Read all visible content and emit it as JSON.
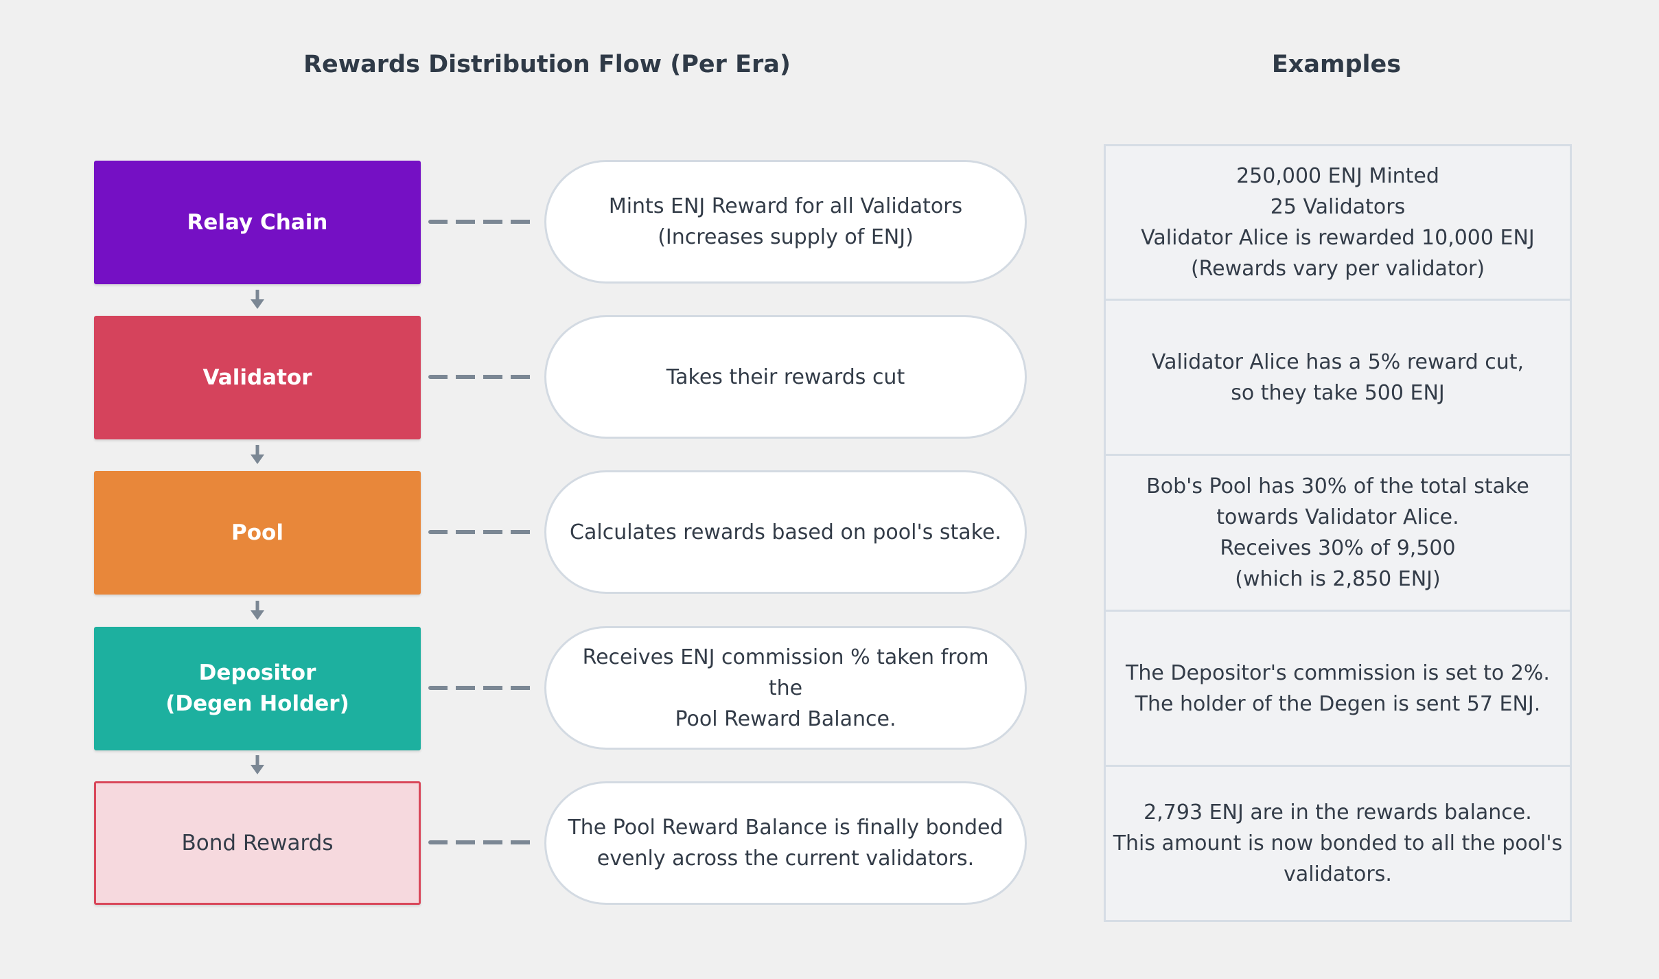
{
  "headings": {
    "flow": "Rewards Distribution Flow  (Per Era)",
    "examples": "Examples"
  },
  "colors": {
    "relay_chain": "#7510c4",
    "validator": "#d5435c",
    "pool": "#e8873a",
    "depositor": "#1db09f",
    "bond_rewards_fill": "#f6d9de",
    "bond_rewards_border": "#d9475a",
    "connector": "#7b8794"
  },
  "stages": [
    {
      "label": "Relay Chain",
      "description": "Mints ENJ Reward for all Validators\n(Increases supply of ENJ)",
      "example": "250,000 ENJ Minted\n25 Validators\nValidator Alice is rewarded 10,000 ENJ\n(Rewards vary per validator)"
    },
    {
      "label": "Validator",
      "description": "Takes their rewards cut",
      "example": "Validator Alice has a 5% reward cut,\nso they take 500 ENJ"
    },
    {
      "label": "Pool",
      "description": "Calculates rewards based on pool's stake.",
      "example": "Bob's Pool has 30% of the total stake\ntowards Validator Alice.\nReceives 30% of 9,500\n(which is 2,850 ENJ)"
    },
    {
      "label": "Depositor\n(Degen Holder)",
      "description": "Receives ENJ commission % taken from the\nPool Reward Balance.",
      "example": "The Depositor's commission is set to 2%.\nThe holder of the Degen is sent 57 ENJ."
    },
    {
      "label": "Bond Rewards",
      "description": "The Pool Reward Balance is finally bonded\nevenly across the current validators.",
      "example": "2,793 ENJ are in the rewards balance.\nThis amount is now bonded to all the pool's\nvalidators."
    }
  ]
}
